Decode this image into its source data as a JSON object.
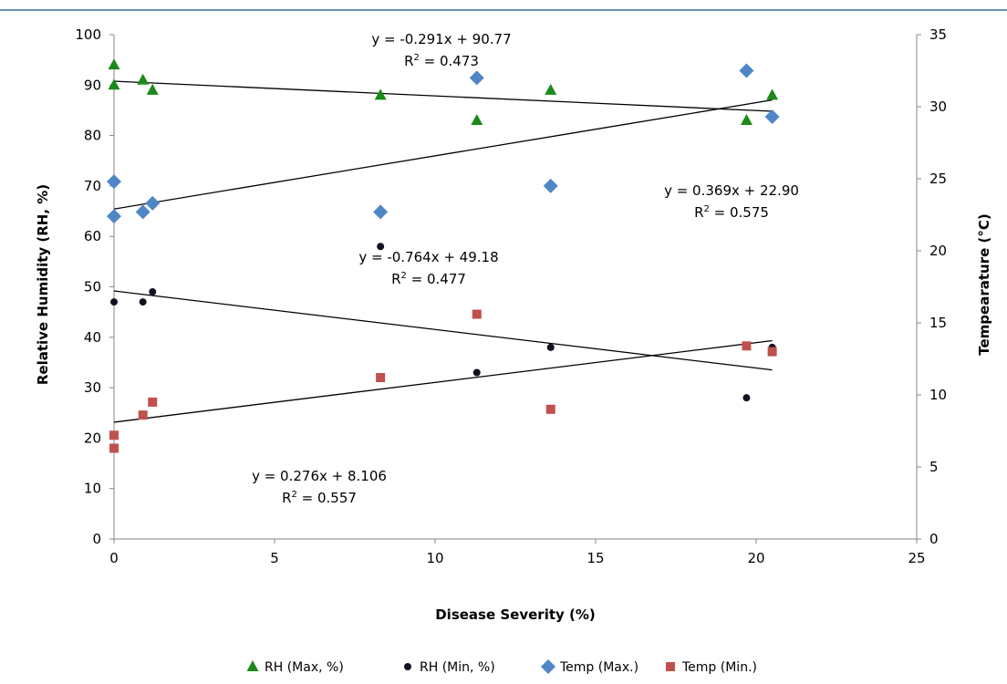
{
  "chart_data": {
    "type": "scatter",
    "title": "",
    "xlabel": "Disease Severity (%)",
    "ylabel": "Relative Humidity (RH, %)",
    "y2label": "Tempearature (°C)",
    "xlim": [
      0,
      25
    ],
    "ylim": [
      0,
      100
    ],
    "y2lim": [
      0,
      35
    ],
    "x_ticks": [
      "0",
      "5",
      "10",
      "15",
      "20",
      "25"
    ],
    "y_ticks": [
      "0",
      "10",
      "20",
      "30",
      "40",
      "50",
      "60",
      "70",
      "80",
      "90",
      "100"
    ],
    "y2_ticks": [
      "0",
      "5",
      "10",
      "15",
      "20",
      "25",
      "30",
      "35"
    ],
    "grid": false,
    "legend_position": "bottom",
    "series": [
      {
        "name": "RH (Max, %)",
        "axis": "left",
        "marker": "triangle",
        "color": "#1a8a1a",
        "points": [
          [
            0,
            94
          ],
          [
            0,
            90
          ],
          [
            0.9,
            91
          ],
          [
            1.2,
            89
          ],
          [
            8.3,
            88
          ],
          [
            11.3,
            83
          ],
          [
            13.6,
            89
          ],
          [
            19.7,
            83
          ],
          [
            20.5,
            88
          ]
        ],
        "trendline": {
          "slope": -0.291,
          "intercept": 90.77,
          "x_range": [
            0,
            20.5
          ],
          "equation": "y = -0.291x + 90.77",
          "r2_prefix": "R",
          "r2_value": " = 0.473"
        }
      },
      {
        "name": "RH (Min, %)",
        "axis": "left",
        "marker": "circle",
        "color": "#111122",
        "points": [
          [
            0,
            47
          ],
          [
            0.9,
            47
          ],
          [
            1.2,
            49
          ],
          [
            8.3,
            58
          ],
          [
            11.3,
            33
          ],
          [
            13.6,
            38
          ],
          [
            19.7,
            28
          ],
          [
            20.5,
            38
          ]
        ],
        "trendline": {
          "slope": -0.764,
          "intercept": 49.18,
          "x_range": [
            0,
            20.5
          ],
          "equation": "y = -0.764x + 49.18",
          "r2_prefix": "R",
          "r2_value": " = 0.477"
        }
      },
      {
        "name": "Temp (Max.)",
        "axis": "right",
        "marker": "diamond",
        "color": "#4f86c6",
        "points": [
          [
            0,
            24.8
          ],
          [
            0,
            22.4
          ],
          [
            0.9,
            22.7
          ],
          [
            1.2,
            23.3
          ],
          [
            8.3,
            22.7
          ],
          [
            11.3,
            32
          ],
          [
            13.6,
            24.5
          ],
          [
            19.7,
            32.5
          ],
          [
            20.5,
            29.3
          ]
        ],
        "trendline": {
          "slope": 0.369,
          "intercept": 22.9,
          "x_range": [
            0,
            20.5
          ],
          "equation": "y = 0.369x + 22.90",
          "r2_prefix": "R",
          "r2_value": " = 0.575"
        }
      },
      {
        "name": "Temp (Min.)",
        "axis": "right",
        "marker": "square",
        "color": "#c0504d",
        "points": [
          [
            0,
            7.2
          ],
          [
            0,
            6.3
          ],
          [
            0.9,
            8.6
          ],
          [
            1.2,
            9.5
          ],
          [
            8.3,
            11.2
          ],
          [
            11.3,
            15.6
          ],
          [
            13.6,
            9
          ],
          [
            19.7,
            13.4
          ],
          [
            20.5,
            13
          ]
        ],
        "trendline": {
          "slope": 0.276,
          "intercept": 8.106,
          "x_range": [
            0,
            20.5
          ],
          "equation": "y = 0.276x + 8.106",
          "r2_prefix": "R",
          "r2_value": " = 0.557"
        }
      }
    ]
  }
}
